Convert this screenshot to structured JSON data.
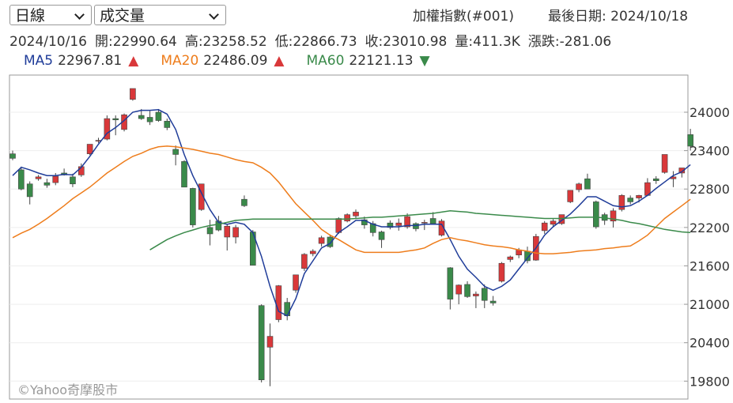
{
  "header": {
    "period": "日線",
    "indicator": "成交量",
    "symbol": "加權指數(#001)",
    "last_date": "最後日期: 2024/10/18",
    "info": [
      "2024/10/16",
      "開:22990.64",
      "高:23258.52",
      "低:22866.73",
      "收:23010.98",
      "量:411.3K",
      "漲跌:-281.06"
    ]
  },
  "chart_data": {
    "type": "candlestick",
    "watermark": "©Yahoo奇摩股市",
    "up_color": "#d9383a",
    "down_color": "#3a8a4a",
    "open": [
      23350,
      23100,
      22880,
      22960,
      22900,
      22900,
      23050,
      22990,
      23020,
      23350,
      23560,
      23580,
      23900,
      23730,
      24200,
      23950,
      23920,
      24000,
      23860,
      23420,
      23230,
      22810,
      22480,
      22200,
      22300,
      22050,
      22050,
      22640,
      22130,
      20980,
      20330,
      20760,
      21030,
      21220,
      21560,
      21790,
      21950,
      22050,
      22120,
      22300,
      22380,
      22320,
      22260,
      22130,
      22270,
      22230,
      22210,
      22260,
      22270,
      22340,
      22080,
      21570,
      21160,
      21310,
      21130,
      21250,
      21050,
      21360,
      21700,
      21770,
      21830,
      21690,
      22150,
      22250,
      22260,
      22600,
      22790,
      22960,
      22600,
      22400,
      22300,
      22480,
      22660,
      22660,
      22700,
      22960,
      23060,
      22960,
      23050,
      23650
    ],
    "high": [
      23400,
      23150,
      22920,
      23020,
      22960,
      23050,
      23120,
      23040,
      23200,
      23500,
      23600,
      23950,
      23950,
      23980,
      24370,
      24050,
      24020,
      24050,
      23900,
      23480,
      23250,
      22820,
      22880,
      22320,
      22380,
      22250,
      22240,
      22700,
      22160,
      21000,
      20700,
      21300,
      21100,
      21460,
      21800,
      21860,
      22070,
      22090,
      22360,
      22420,
      22480,
      22370,
      22300,
      22150,
      22310,
      22340,
      22420,
      22280,
      22320,
      22440,
      22330,
      21580,
      21310,
      21360,
      21200,
      21310,
      21130,
      21660,
      21760,
      21880,
      21900,
      22100,
      22300,
      22330,
      22380,
      22780,
      22900,
      23040,
      22620,
      22430,
      22500,
      22720,
      22700,
      22710,
      22970,
      23000,
      23330,
      23080,
      23120,
      23740
    ],
    "low": [
      23250,
      22780,
      22560,
      22930,
      22820,
      22860,
      23010,
      22830,
      22990,
      23330,
      23520,
      23560,
      23640,
      23700,
      24180,
      23880,
      23800,
      23850,
      23720,
      23170,
      22830,
      22200,
      22460,
      21920,
      22140,
      21840,
      21950,
      22520,
      21610,
      19780,
      19720,
      20720,
      20750,
      21180,
      21520,
      21750,
      21900,
      21880,
      22100,
      22280,
      22340,
      22180,
      22060,
      21880,
      22170,
      22150,
      22180,
      22140,
      22160,
      22250,
      22060,
      20920,
      21000,
      21100,
      20940,
      20940,
      20980,
      21340,
      21660,
      21720,
      21640,
      21680,
      22100,
      22200,
      22240,
      22580,
      22750,
      22800,
      22180,
      22240,
      22200,
      22450,
      22560,
      22590,
      22690,
      22880,
      23040,
      22830,
      22980,
      23400
    ],
    "close": [
      23280,
      22800,
      22680,
      22990,
      22860,
      23000,
      23020,
      22880,
      23150,
      23500,
      23560,
      23900,
      23880,
      23960,
      24370,
      23900,
      23850,
      23870,
      23760,
      23340,
      22830,
      22240,
      22880,
      22100,
      22160,
      22220,
      22200,
      22540,
      21610,
      19820,
      20500,
      21290,
      20820,
      21460,
      21780,
      21830,
      22040,
      21900,
      22340,
      22400,
      22440,
      22240,
      22120,
      22010,
      22200,
      22270,
      22370,
      22180,
      22280,
      22260,
      22300,
      21080,
      21300,
      21120,
      21160,
      21060,
      21020,
      21640,
      21740,
      21850,
      21680,
      22060,
      22270,
      22300,
      22400,
      22780,
      22880,
      22800,
      22210,
      22310,
      22460,
      22700,
      22600,
      22700,
      22900,
      22930,
      23340,
      22990,
      23130,
      23470
    ],
    "series": [
      {
        "name": "MA5",
        "legend_value": "22967.81",
        "trend": "▲",
        "trend_color": "#d9383a",
        "color": "#1f3c99",
        "values": [
          23010,
          23140,
          23100,
          23050,
          23010,
          23010,
          23030,
          23020,
          23140,
          23310,
          23500,
          23670,
          23760,
          23870,
          24000,
          24030,
          24030,
          24040,
          23970,
          23730,
          23340,
          23010,
          22740,
          22480,
          22280,
          22250,
          22280,
          22250,
          22120,
          21750,
          21280,
          20890,
          20820,
          21090,
          21480,
          21680,
          21880,
          21950,
          22120,
          22210,
          22310,
          22310,
          22250,
          22210,
          22210,
          22210,
          22230,
          22230,
          22250,
          22250,
          22250,
          22010,
          21750,
          21550,
          21420,
          21280,
          21220,
          21280,
          21380,
          21550,
          21720,
          21880,
          22080,
          22210,
          22310,
          22410,
          22540,
          22680,
          22680,
          22610,
          22540,
          22520,
          22540,
          22610,
          22700,
          22810,
          22910,
          23010,
          23070,
          23180
        ]
      },
      {
        "name": "MA20",
        "legend_value": "22486.09",
        "trend": "▲",
        "trend_color": "#d9383a",
        "color": "#ee7d1c",
        "values": [
          22040,
          22110,
          22170,
          22250,
          22340,
          22440,
          22540,
          22650,
          22740,
          22830,
          22940,
          23050,
          23140,
          23230,
          23310,
          23360,
          23420,
          23460,
          23470,
          23460,
          23440,
          23420,
          23390,
          23360,
          23340,
          23300,
          23260,
          23230,
          23210,
          23140,
          23050,
          22910,
          22740,
          22570,
          22440,
          22310,
          22170,
          22080,
          22010,
          21930,
          21850,
          21810,
          21810,
          21810,
          21810,
          21810,
          21830,
          21850,
          21880,
          21950,
          22010,
          22040,
          22010,
          21990,
          21960,
          21930,
          21910,
          21900,
          21880,
          21850,
          21830,
          21800,
          21790,
          21790,
          21800,
          21810,
          21830,
          21840,
          21850,
          21870,
          21880,
          21900,
          21910,
          21990,
          22080,
          22210,
          22340,
          22440,
          22540,
          22640
        ]
      },
      {
        "name": "MA60",
        "legend_value": "22121.13",
        "trend": "▼",
        "trend_color": "#3a8a4a",
        "color": "#3a8a4a",
        "values": [
          null,
          null,
          null,
          null,
          null,
          null,
          null,
          null,
          null,
          null,
          null,
          null,
          null,
          null,
          null,
          null,
          21850,
          21930,
          22010,
          22070,
          22120,
          22160,
          22200,
          22230,
          22250,
          22280,
          22310,
          22320,
          22330,
          22330,
          22330,
          22330,
          22330,
          22330,
          22330,
          22330,
          22330,
          22330,
          22330,
          22330,
          22340,
          22350,
          22360,
          22360,
          22370,
          22380,
          22390,
          22400,
          22410,
          22420,
          22440,
          22460,
          22450,
          22440,
          22420,
          22410,
          22400,
          22390,
          22380,
          22370,
          22360,
          22350,
          22340,
          22340,
          22340,
          22350,
          22360,
          22360,
          22360,
          22350,
          22330,
          22310,
          22280,
          22260,
          22230,
          22200,
          22170,
          22150,
          22130,
          22120
        ]
      }
    ],
    "ylim": [
      19520,
      24580
    ],
    "yticks": [
      19800,
      20400,
      21000,
      21600,
      22200,
      22800,
      23400,
      24000
    ],
    "grid": true
  }
}
